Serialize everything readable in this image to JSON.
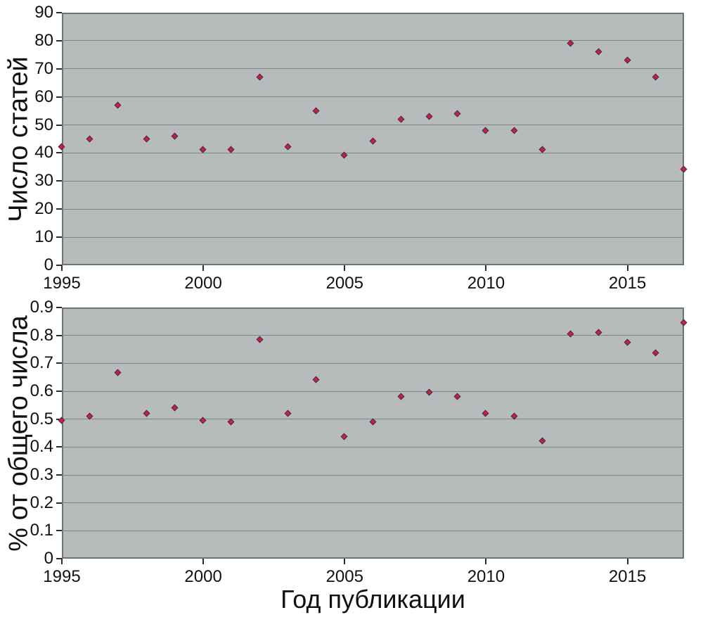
{
  "colors": {
    "page_background": "#ffffff",
    "plot_background": "#b7bbbb",
    "gridline": "#7b8585",
    "plot_border": "#6b7474",
    "tick": "#2b2b2b",
    "text": "#111111",
    "marker_fill": "#d1202a",
    "marker_border": "#2c2f6b"
  },
  "chart_data": [
    {
      "type": "scatter",
      "title": "",
      "ylabel": "Число статей",
      "xlabel": "",
      "marker": "diamond",
      "legend": "none",
      "grid": "horizontal",
      "xlim": [
        1995,
        2017
      ],
      "ylim": [
        0,
        90
      ],
      "xtick_values": [
        1995,
        2000,
        2005,
        2010,
        2015
      ],
      "xtick_labels": [
        "1995",
        "2000",
        "2005",
        "2010",
        "2015"
      ],
      "ytick_values": [
        0,
        10,
        20,
        30,
        40,
        50,
        60,
        70,
        80,
        90
      ],
      "ytick_labels": [
        "0",
        "10",
        "20",
        "30",
        "40",
        "50",
        "60",
        "70",
        "80",
        "90"
      ],
      "x": [
        1995,
        1996,
        1997,
        1998,
        1999,
        2000,
        2001,
        2002,
        2003,
        2004,
        2005,
        2006,
        2007,
        2008,
        2009,
        2010,
        2011,
        2012,
        2013,
        2014,
        2015,
        2016,
        2017
      ],
      "values": [
        42,
        45,
        57,
        45,
        46,
        41,
        41,
        67,
        42,
        55,
        39,
        44,
        52,
        53,
        54,
        48,
        48,
        41,
        79,
        76,
        73,
        67,
        34
      ]
    },
    {
      "type": "scatter",
      "title": "",
      "ylabel": "% от общего числа",
      "xlabel": "Год публикации",
      "marker": "diamond",
      "legend": "none",
      "grid": "horizontal",
      "xlim": [
        1995,
        2017
      ],
      "ylim": [
        0,
        0.9
      ],
      "xtick_values": [
        1995,
        2000,
        2005,
        2010,
        2015
      ],
      "xtick_labels": [
        "1995",
        "2000",
        "2005",
        "2010",
        "2015"
      ],
      "ytick_values": [
        0,
        0.1,
        0.2,
        0.3,
        0.4,
        0.5,
        0.6,
        0.7,
        0.8,
        0.9
      ],
      "ytick_labels": [
        "0",
        "0.1",
        "0.2",
        "0.3",
        "0.4",
        "0.5",
        "0.6",
        "0.7",
        "0.8",
        "0.9"
      ],
      "x": [
        1995,
        1996,
        1997,
        1998,
        1999,
        2000,
        2001,
        2002,
        2003,
        2004,
        2005,
        2006,
        2007,
        2008,
        2009,
        2010,
        2011,
        2012,
        2013,
        2014,
        2015,
        2016,
        2017
      ],
      "values": [
        0.495,
        0.51,
        0.665,
        0.52,
        0.54,
        0.495,
        0.49,
        0.785,
        0.52,
        0.64,
        0.435,
        0.49,
        0.58,
        0.595,
        0.58,
        0.52,
        0.51,
        0.42,
        0.805,
        0.81,
        0.775,
        0.735,
        0.845
      ]
    }
  ]
}
